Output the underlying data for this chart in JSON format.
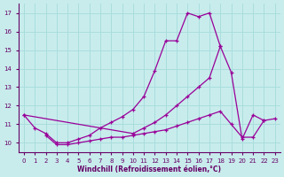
{
  "xlabel": "Windchill (Refroidissement éolien,°C)",
  "bg_color": "#c8ecec",
  "grid_color": "#aadddd",
  "line_color": "#990099",
  "xlim": [
    -0.5,
    23.5
  ],
  "ylim": [
    9.5,
    17.5
  ],
  "xticks": [
    0,
    1,
    2,
    3,
    4,
    5,
    6,
    7,
    8,
    9,
    10,
    11,
    12,
    13,
    14,
    15,
    16,
    17,
    18,
    19,
    20,
    21,
    22,
    23
  ],
  "yticks": [
    10,
    11,
    12,
    13,
    14,
    15,
    16,
    17
  ],
  "line1_x": [
    0,
    1,
    2,
    3,
    4,
    5,
    6,
    7,
    8,
    9,
    10,
    11,
    12,
    13,
    14,
    15,
    16,
    17,
    18
  ],
  "line1_y": [
    11.5,
    10.8,
    10.5,
    10.0,
    10.0,
    10.2,
    10.4,
    10.8,
    11.1,
    11.4,
    11.8,
    12.5,
    13.9,
    15.5,
    15.5,
    17.0,
    16.8,
    17.0,
    15.2
  ],
  "line2_x": [
    0,
    1,
    2,
    3,
    4,
    5,
    6,
    7,
    8,
    9,
    10,
    11,
    12,
    13,
    14,
    15,
    16,
    17,
    18,
    19,
    20,
    21,
    22,
    23
  ],
  "line2_y": [
    11.5,
    null,
    null,
    null,
    null,
    null,
    null,
    null,
    null,
    null,
    10.5,
    10.8,
    11.1,
    11.5,
    12.0,
    12.5,
    13.0,
    13.5,
    15.2,
    13.8,
    10.2,
    11.5,
    11.2,
    11.3
  ],
  "line3_x": [
    0,
    1,
    2,
    3,
    4,
    5,
    6,
    7,
    8,
    9,
    10,
    11,
    12,
    13,
    14,
    15,
    16,
    17,
    18,
    19,
    20,
    21,
    22,
    23
  ],
  "line3_y": [
    null,
    null,
    10.4,
    9.9,
    9.9,
    10.0,
    10.1,
    10.2,
    10.3,
    10.3,
    10.4,
    10.5,
    10.6,
    10.7,
    10.9,
    11.1,
    11.3,
    11.5,
    11.7,
    11.0,
    10.3,
    10.3,
    11.2,
    null
  ]
}
